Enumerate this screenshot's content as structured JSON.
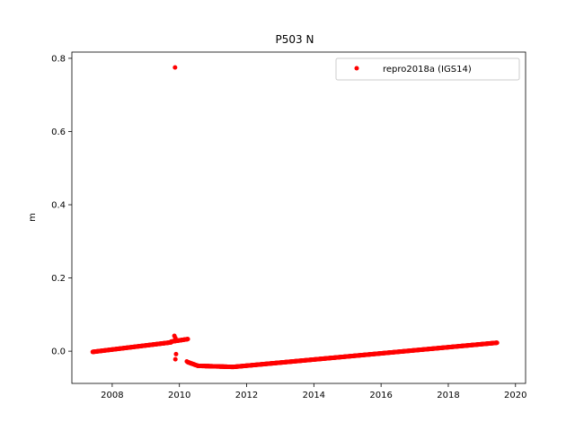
{
  "chart_data": {
    "type": "scatter",
    "title": "P503 N",
    "xlabel": "",
    "ylabel": "m",
    "xlim": [
      2006.8,
      2020.3
    ],
    "ylim": [
      -0.088,
      0.817
    ],
    "xticks": [
      2008,
      2010,
      2012,
      2014,
      2016,
      2018,
      2020
    ],
    "yticks": [
      0.0,
      0.2,
      0.4,
      0.6,
      0.8
    ],
    "xtick_labels": [
      "2008",
      "2010",
      "2012",
      "2014",
      "2016",
      "2018",
      "2020"
    ],
    "ytick_labels": [
      "0.0",
      "0.2",
      "0.4",
      "0.6",
      "0.8"
    ],
    "grid": false,
    "legend": {
      "position": "top-right"
    },
    "series": [
      {
        "name": "repro2018a (IGS14)",
        "color": "#ff0000",
        "segments": [
          {
            "x_start": 2007.42,
            "x_end": 2009.75,
            "y_start": -0.002,
            "y_end": 0.024,
            "step": 0.01
          },
          {
            "x_start": 2009.75,
            "x_end": 2010.25,
            "y_start": 0.026,
            "y_end": 0.033,
            "step": 0.01
          },
          {
            "x_start": 2010.25,
            "x_end": 2010.55,
            "y_start": -0.03,
            "y_end": -0.04,
            "step": 0.01
          },
          {
            "x_start": 2010.55,
            "x_end": 2011.6,
            "y_start": -0.04,
            "y_end": -0.043,
            "step": 0.01
          },
          {
            "x_start": 2011.6,
            "x_end": 2019.45,
            "y_start": -0.043,
            "y_end": 0.023,
            "step": 0.01
          }
        ],
        "points": [
          {
            "x": 2009.87,
            "y": 0.775
          },
          {
            "x": 2009.85,
            "y": 0.042
          },
          {
            "x": 2009.88,
            "y": 0.036
          },
          {
            "x": 2009.9,
            "y": -0.008
          },
          {
            "x": 2009.88,
            "y": -0.022
          },
          {
            "x": 2010.22,
            "y": -0.028
          }
        ]
      }
    ]
  }
}
